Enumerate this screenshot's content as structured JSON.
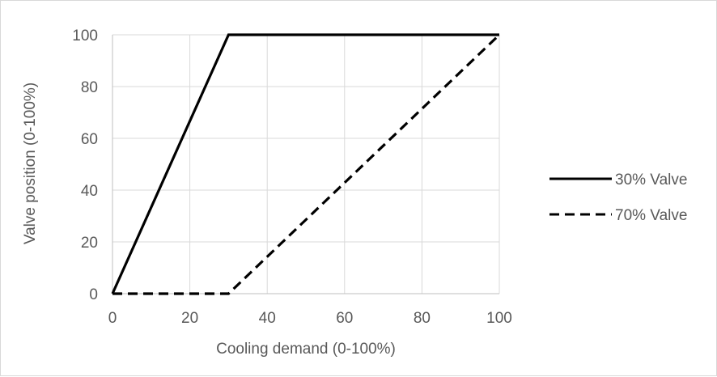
{
  "chart_data": {
    "type": "line",
    "title": "",
    "xlabel": "Cooling demand (0-100%)",
    "ylabel": "Valve position (0-100%)",
    "xlim": [
      0,
      100
    ],
    "ylim": [
      0,
      100
    ],
    "xticks": [
      0,
      20,
      40,
      60,
      80,
      100
    ],
    "yticks": [
      0,
      20,
      40,
      60,
      80,
      100
    ],
    "grid": "vertical and horizontal major gridlines",
    "legend_position": "right",
    "series": [
      {
        "name": "30% Valve",
        "style": "solid",
        "color": "#000000",
        "x": [
          0,
          30,
          100
        ],
        "y": [
          0,
          100,
          100
        ]
      },
      {
        "name": "70% Valve",
        "style": "dashed",
        "color": "#000000",
        "x": [
          0,
          30,
          100
        ],
        "y": [
          0,
          0,
          100
        ]
      }
    ]
  }
}
